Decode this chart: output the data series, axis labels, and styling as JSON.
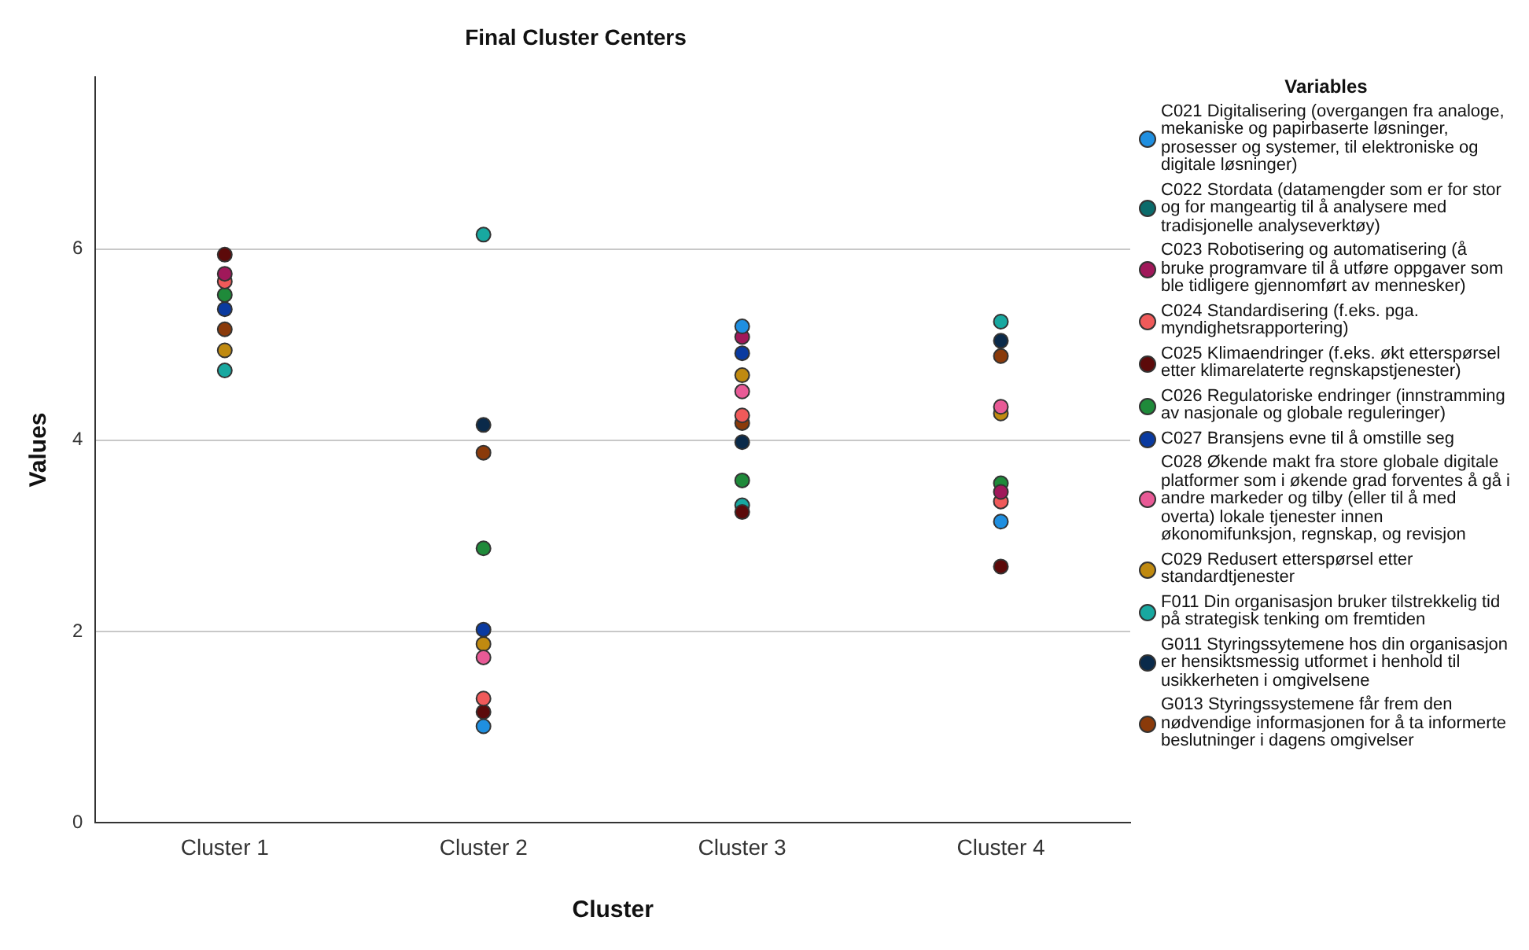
{
  "chart_data": {
    "type": "scatter",
    "title": "Final Cluster Centers",
    "xlabel": "Cluster",
    "ylabel": "Values",
    "legend_title": "Variables",
    "categories": [
      "Cluster 1",
      "Cluster 2",
      "Cluster 3",
      "Cluster 4"
    ],
    "ylim": [
      0,
      7.8
    ],
    "yticks": [
      0,
      2,
      4,
      6
    ],
    "grid": "y",
    "legend": "right",
    "marker": "circle",
    "series": [
      {
        "name": "C021 Digitalisering (overgangen fra analoge, mekaniske og papirbaserte løsninger, prosesser og systemer, til elektroniske og digitale løsninger)",
        "color": "#1f8fe0",
        "values": [
          null,
          1.01,
          5.19,
          3.15
        ]
      },
      {
        "name": "C022 Stordata (datamengder som er for stor og for mangeartig til å analysere med tradisjonelle analyseverktøy)",
        "color": "#0b6b6b",
        "values": [
          null,
          null,
          null,
          null
        ]
      },
      {
        "name": "C023 Robotisering og automatisering (å bruke programvare til å utføre oppgaver som ble tidligere gjennomført av mennesker)",
        "color": "#a0185a",
        "values": [
          5.74,
          null,
          5.08,
          3.46
        ]
      },
      {
        "name": "C024 Standardisering (f.eks. pga. myndighetsrapportering)",
        "color": "#f05a5a",
        "values": [
          5.66,
          1.3,
          4.26,
          3.36
        ]
      },
      {
        "name": "C025 Klimaendringer (f.eks. økt etterspørsel etter klimarelaterte regnskapstjenester)",
        "color": "#5c0a0a",
        "values": [
          5.94,
          1.16,
          3.25,
          2.68
        ]
      },
      {
        "name": "C026 Regulatoriske endringer (innstramming av nasjonale og globale reguleringer)",
        "color": "#1f8a3a",
        "values": [
          5.52,
          2.87,
          3.58,
          3.55
        ]
      },
      {
        "name": "C027 Bransjens evne til å omstille seg",
        "color": "#0a3aa0",
        "values": [
          5.37,
          2.02,
          4.91,
          null
        ]
      },
      {
        "name": "C028 Økende makt fra store globale digitale platformer som i økende grad forventes å gå i andre markeder og tilby (eller til å med overta) lokale tjenester innen økonomifunksjon, regnskap, og revisjon",
        "color": "#e85a96",
        "values": [
          null,
          1.73,
          4.51,
          4.35
        ]
      },
      {
        "name": "C029 Redusert etterspørsel etter standardtjenester",
        "color": "#c08a10",
        "values": [
          4.94,
          1.87,
          4.68,
          4.28
        ]
      },
      {
        "name": "F011 Din organisasjon bruker tilstrekkelig tid på strategisk tenking om fremtiden",
        "color": "#18a8a0",
        "values": [
          4.73,
          6.15,
          3.32,
          5.24
        ]
      },
      {
        "name": "G011 Styringssytemene hos din organisasjon er hensiktsmessig utformet i henhold til usikkerheten i omgivelsene",
        "color": "#0a2a4a",
        "values": [
          null,
          4.16,
          3.98,
          5.04
        ]
      },
      {
        "name": "G013 Styringssystemene får frem den nødvendige informasjonen for å ta informerte beslutninger i dagens omgivelser",
        "color": "#8a3a0a",
        "values": [
          5.16,
          3.87,
          4.18,
          4.88
        ]
      }
    ]
  }
}
